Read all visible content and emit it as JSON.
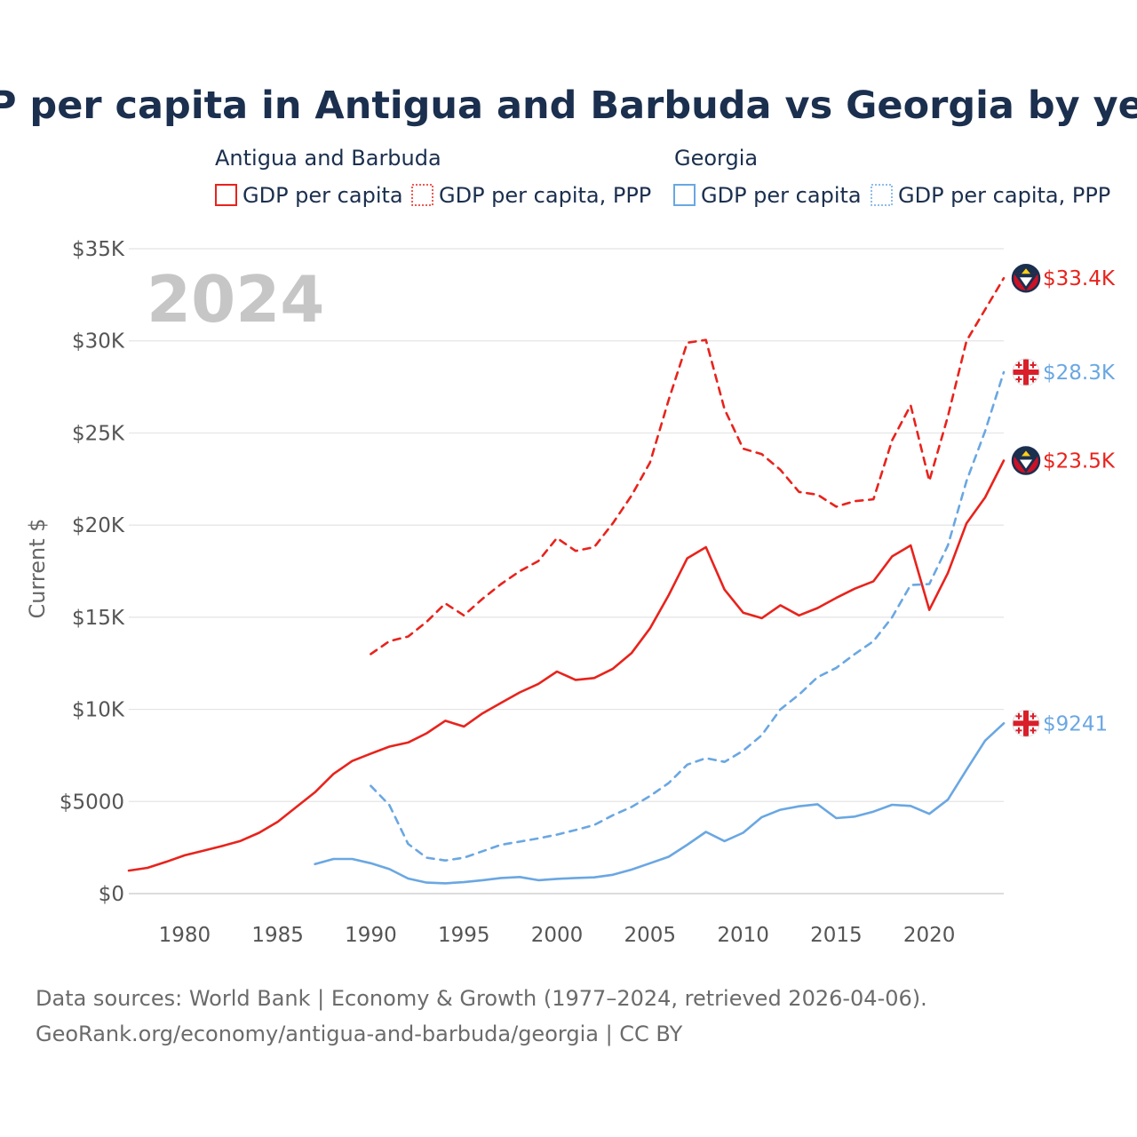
{
  "chart_data": {
    "type": "line",
    "title": "GDP per capita in Antigua and Barbuda vs Georgia by year",
    "ylabel": "Current $",
    "year_label": "2024",
    "xlim": [
      1977,
      2024
    ],
    "ylim": [
      0,
      35000
    ],
    "x_ticks": [
      1980,
      1985,
      1990,
      1995,
      2000,
      2005,
      2010,
      2015,
      2020
    ],
    "x_tick_labels": [
      "1980",
      "1985",
      "1990",
      "1995",
      "2000",
      "2005",
      "2010",
      "2015",
      "2020"
    ],
    "y_ticks": [
      0,
      5000,
      10000,
      15000,
      20000,
      25000,
      30000,
      35000
    ],
    "y_tick_labels": [
      "$0",
      "$5000",
      "$10K",
      "$15K",
      "$20K",
      "$25K",
      "$30K",
      "$35K"
    ],
    "legend": {
      "groups": [
        {
          "name": "Antigua and Barbuda",
          "items": [
            "GDP per capita",
            "GDP per capita, PPP"
          ],
          "color": "#e8231c"
        },
        {
          "name": "Georgia",
          "items": [
            "GDP per capita",
            "GDP per capita, PPP"
          ],
          "color": "#6aa7e2"
        }
      ]
    },
    "series": [
      {
        "name": "Antigua and Barbuda — GDP per capita",
        "color": "#e8231c",
        "dash": false,
        "flag": "antigua",
        "end_label": "$23.5K",
        "points": [
          [
            1977,
            1250
          ],
          [
            1978,
            1400
          ],
          [
            1979,
            1720
          ],
          [
            1980,
            2080
          ],
          [
            1981,
            2330
          ],
          [
            1982,
            2580
          ],
          [
            1983,
            2860
          ],
          [
            1984,
            3300
          ],
          [
            1985,
            3900
          ],
          [
            1986,
            4700
          ],
          [
            1987,
            5500
          ],
          [
            1988,
            6500
          ],
          [
            1989,
            7200
          ],
          [
            1990,
            7600
          ],
          [
            1991,
            7980
          ],
          [
            1992,
            8200
          ],
          [
            1993,
            8700
          ],
          [
            1994,
            9380
          ],
          [
            1995,
            9070
          ],
          [
            1996,
            9780
          ],
          [
            1997,
            10350
          ],
          [
            1998,
            10920
          ],
          [
            1999,
            11380
          ],
          [
            2000,
            12050
          ],
          [
            2001,
            11600
          ],
          [
            2002,
            11700
          ],
          [
            2003,
            12200
          ],
          [
            2004,
            13050
          ],
          [
            2005,
            14400
          ],
          [
            2006,
            16200
          ],
          [
            2007,
            18200
          ],
          [
            2008,
            18800
          ],
          [
            2009,
            16500
          ],
          [
            2010,
            15250
          ],
          [
            2011,
            14950
          ],
          [
            2012,
            15650
          ],
          [
            2013,
            15100
          ],
          [
            2014,
            15500
          ],
          [
            2015,
            16050
          ],
          [
            2016,
            16550
          ],
          [
            2017,
            16950
          ],
          [
            2018,
            18300
          ],
          [
            2019,
            18900
          ],
          [
            2020,
            15400
          ],
          [
            2021,
            17400
          ],
          [
            2022,
            20100
          ],
          [
            2023,
            21500
          ],
          [
            2024,
            23500
          ]
        ]
      },
      {
        "name": "Antigua and Barbuda — GDP per capita, PPP",
        "color": "#e8231c",
        "dash": true,
        "flag": "antigua",
        "end_label": "$33.4K",
        "points": [
          [
            1990,
            13000
          ],
          [
            1991,
            13700
          ],
          [
            1992,
            13950
          ],
          [
            1993,
            14750
          ],
          [
            1994,
            15750
          ],
          [
            1995,
            15100
          ],
          [
            1996,
            16000
          ],
          [
            1997,
            16800
          ],
          [
            1998,
            17500
          ],
          [
            1999,
            18050
          ],
          [
            2000,
            19300
          ],
          [
            2001,
            18600
          ],
          [
            2002,
            18800
          ],
          [
            2003,
            20100
          ],
          [
            2004,
            21600
          ],
          [
            2005,
            23400
          ],
          [
            2006,
            26800
          ],
          [
            2007,
            29900
          ],
          [
            2008,
            30050
          ],
          [
            2009,
            26300
          ],
          [
            2010,
            24150
          ],
          [
            2011,
            23850
          ],
          [
            2012,
            23000
          ],
          [
            2013,
            21800
          ],
          [
            2014,
            21650
          ],
          [
            2015,
            21000
          ],
          [
            2016,
            21300
          ],
          [
            2017,
            21400
          ],
          [
            2018,
            24600
          ],
          [
            2019,
            26500
          ],
          [
            2020,
            22400
          ],
          [
            2021,
            25900
          ],
          [
            2022,
            30000
          ],
          [
            2023,
            31700
          ],
          [
            2024,
            33400
          ]
        ]
      },
      {
        "name": "Georgia — GDP per capita",
        "color": "#6aa7e2",
        "dash": false,
        "flag": "georgia",
        "end_label": "$9241",
        "points": [
          [
            1987,
            1600
          ],
          [
            1988,
            1880
          ],
          [
            1989,
            1880
          ],
          [
            1990,
            1650
          ],
          [
            1991,
            1330
          ],
          [
            1992,
            820
          ],
          [
            1993,
            600
          ],
          [
            1994,
            560
          ],
          [
            1995,
            620
          ],
          [
            1996,
            730
          ],
          [
            1997,
            850
          ],
          [
            1998,
            900
          ],
          [
            1999,
            730
          ],
          [
            2000,
            800
          ],
          [
            2001,
            850
          ],
          [
            2002,
            880
          ],
          [
            2003,
            1020
          ],
          [
            2004,
            1300
          ],
          [
            2005,
            1650
          ],
          [
            2006,
            2000
          ],
          [
            2007,
            2650
          ],
          [
            2008,
            3350
          ],
          [
            2009,
            2850
          ],
          [
            2010,
            3300
          ],
          [
            2011,
            4150
          ],
          [
            2012,
            4550
          ],
          [
            2013,
            4740
          ],
          [
            2014,
            4850
          ],
          [
            2015,
            4100
          ],
          [
            2016,
            4180
          ],
          [
            2017,
            4450
          ],
          [
            2018,
            4820
          ],
          [
            2019,
            4760
          ],
          [
            2020,
            4330
          ],
          [
            2021,
            5100
          ],
          [
            2022,
            6720
          ],
          [
            2023,
            8300
          ],
          [
            2024,
            9241
          ]
        ]
      },
      {
        "name": "Georgia — GDP per capita, PPP",
        "color": "#6aa7e2",
        "dash": true,
        "flag": "georgia",
        "end_label": "$28.3K",
        "points": [
          [
            1990,
            5850
          ],
          [
            1991,
            4800
          ],
          [
            1992,
            2700
          ],
          [
            1993,
            1950
          ],
          [
            1994,
            1800
          ],
          [
            1995,
            1950
          ],
          [
            1996,
            2300
          ],
          [
            1997,
            2650
          ],
          [
            1998,
            2820
          ],
          [
            1999,
            3000
          ],
          [
            2000,
            3200
          ],
          [
            2001,
            3450
          ],
          [
            2002,
            3720
          ],
          [
            2003,
            4250
          ],
          [
            2004,
            4700
          ],
          [
            2005,
            5300
          ],
          [
            2006,
            6000
          ],
          [
            2007,
            7000
          ],
          [
            2008,
            7350
          ],
          [
            2009,
            7150
          ],
          [
            2010,
            7750
          ],
          [
            2011,
            8600
          ],
          [
            2012,
            10000
          ],
          [
            2013,
            10800
          ],
          [
            2014,
            11750
          ],
          [
            2015,
            12250
          ],
          [
            2016,
            13000
          ],
          [
            2017,
            13700
          ],
          [
            2018,
            15000
          ],
          [
            2019,
            16750
          ],
          [
            2020,
            16800
          ],
          [
            2021,
            18900
          ],
          [
            2022,
            22400
          ],
          [
            2023,
            25100
          ],
          [
            2024,
            28300
          ]
        ]
      }
    ]
  },
  "footer": {
    "source_line": "Data sources: World Bank | Economy & Growth (1977–2024, retrieved 2026-04-06).",
    "url_line": "GeoRank.org/economy/antigua-and-barbuda/georgia | CC BY"
  }
}
